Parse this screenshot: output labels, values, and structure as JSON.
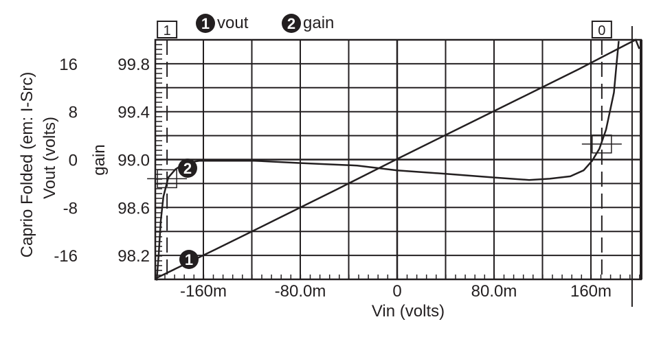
{
  "chart_data": {
    "type": "line",
    "title": "",
    "xlabel": "Vin (volts)",
    "ylabel_left_outer": "Caprio Folded (em: I-Src)",
    "ylabel_vout": "Vout (volts)",
    "ylabel_gain": "gain",
    "xlim": [
      -0.2,
      0.201
    ],
    "ylim_vout": [
      -20,
      20
    ],
    "ylim_gain": [
      98.0,
      100.0
    ],
    "x_ticks": [
      -0.16,
      -0.08,
      0,
      0.08,
      0.16
    ],
    "x_tick_labels": [
      "-160m",
      "-80.0m",
      "0",
      "80.0m",
      "160m"
    ],
    "x_grid": [
      -0.16,
      -0.12,
      -0.08,
      -0.04,
      0,
      0.04,
      0.08,
      0.12,
      0.16
    ],
    "y_grid_vout": [
      -16,
      -12,
      -8,
      -4,
      0,
      4,
      8,
      12,
      16
    ],
    "vout_ticks": [
      16,
      8,
      0,
      -8,
      -16
    ],
    "vout_tick_labels": [
      "16",
      "8",
      "0",
      "-8",
      "-16"
    ],
    "gain_ticks": [
      99.8,
      99.4,
      99.0,
      98.6,
      98.2
    ],
    "gain_tick_labels": [
      "99.8",
      "99.4",
      "99.0",
      "98.6",
      "98.2"
    ],
    "grid": true,
    "legend_position": "top",
    "series": [
      {
        "name": "vout",
        "marker": "1",
        "axis": "vout",
        "x": [
          -0.2,
          -0.15,
          -0.1,
          -0.05,
          0,
          0.05,
          0.1,
          0.15,
          0.19,
          0.197,
          0.2
        ],
        "y": [
          -19.9,
          -15.0,
          -10.0,
          -5.0,
          0.1,
          5.1,
          10.1,
          15.1,
          19.3,
          20.0,
          18.5
        ]
      },
      {
        "name": "gain",
        "marker": "2",
        "axis": "gain",
        "x": [
          -0.1986,
          -0.1969,
          -0.1952,
          -0.193,
          -0.189,
          -0.183,
          -0.175,
          -0.163,
          -0.135,
          -0.118,
          -0.078,
          -0.033,
          0,
          0.041,
          0.081,
          0.109,
          0.126,
          0.143,
          0.154,
          0.161,
          0.167,
          0.1725,
          0.179,
          0.181,
          0.183
        ],
        "y": [
          97.99,
          98.21,
          98.49,
          98.69,
          98.85,
          98.92,
          98.97,
          98.99,
          98.99,
          98.99,
          98.97,
          98.95,
          98.91,
          98.88,
          98.85,
          98.83,
          98.84,
          98.86,
          98.91,
          98.99,
          99.09,
          99.25,
          99.56,
          99.78,
          99.99
        ]
      }
    ],
    "cursors": [
      {
        "label": "1",
        "x": -0.19,
        "y_vout": -3.2
      },
      {
        "label": "0",
        "x": 0.169,
        "y_vout": 2.6
      }
    ],
    "reference_line_x": 0.194
  }
}
